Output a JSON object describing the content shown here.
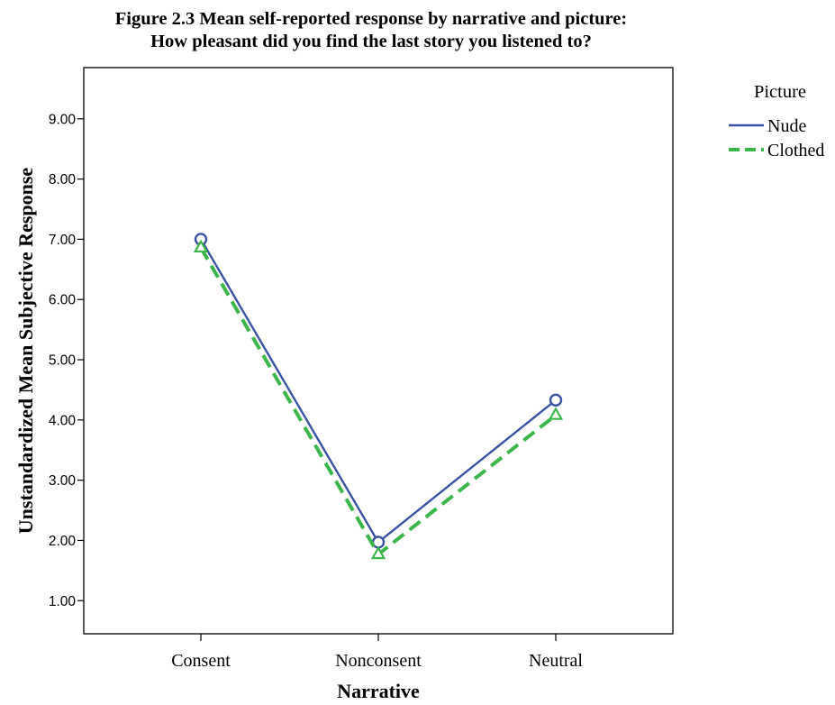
{
  "chart_data": {
    "type": "line",
    "title_line1": "Figure 2.3 Mean self-reported response by narrative and picture:",
    "title_line2": "How pleasant did you find the last story you listened to?",
    "xlabel": "Narrative",
    "ylabel": "Unstandardized Mean Subjective Response",
    "categories": [
      "Consent",
      "Nonconsent",
      "Neutral"
    ],
    "y_ticks": [
      "1.00",
      "2.00",
      "3.00",
      "4.00",
      "5.00",
      "6.00",
      "7.00",
      "8.00",
      "9.00"
    ],
    "ylim": [
      0.45,
      9.85
    ],
    "grid": false,
    "legend": {
      "title": "Picture",
      "position": "right"
    },
    "series": [
      {
        "name": "Nude",
        "values": [
          7.0,
          1.97,
          4.33
        ],
        "color": "#3a53a4",
        "marker": "circle",
        "dash": "solid"
      },
      {
        "name": "Clothed",
        "values": [
          6.86,
          1.77,
          4.08
        ],
        "color": "#3cb64a",
        "marker": "triangle",
        "dash": "dashed"
      }
    ]
  }
}
